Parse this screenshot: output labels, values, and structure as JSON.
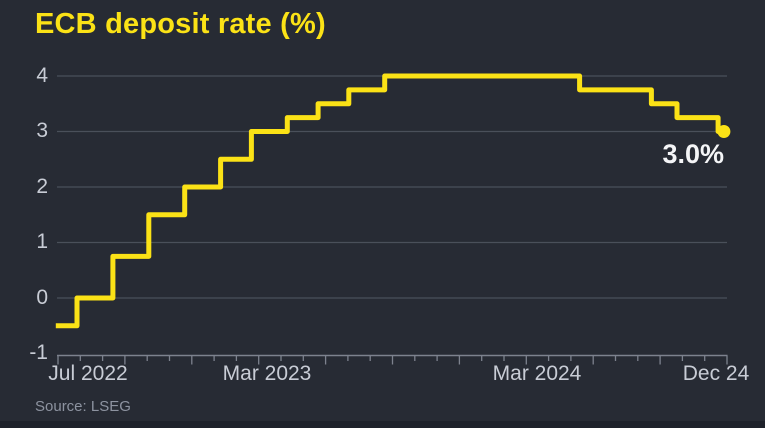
{
  "chart": {
    "title": "ECB deposit rate (%)",
    "source": "Source: LSEG",
    "end_label": "3.0%"
  },
  "colors": {
    "background": "#272b34",
    "line": "#fbe216",
    "title": "#fbe216",
    "grid": "#4a505a",
    "axis": "#7d828e",
    "tick_label": "#c8ccd5",
    "end_label": "#f4f5f7",
    "source": "#8d93a0",
    "bottom_strip": "#1e222b"
  },
  "chart_data": {
    "type": "line",
    "subtype": "step",
    "title": "ECB deposit rate (%)",
    "unit": "%",
    "grid": true,
    "legend": false,
    "ylim": [
      -1,
      4
    ],
    "x_domain": [
      "2022-06-28",
      "2025-01-01"
    ],
    "y_gridlines": [
      4,
      3,
      2,
      1,
      0
    ],
    "y_tick_labels": [
      "4",
      "3",
      "2",
      "1",
      "0",
      "-1"
    ],
    "x_tick_labels": [
      {
        "label": "Jul 2022",
        "date": "2022-07-01"
      },
      {
        "label": "Mar 2023",
        "date": "2023-03-01"
      },
      {
        "label": "Mar 2024",
        "date": "2024-03-01"
      },
      {
        "label": "Dec 24",
        "date": "2024-12-01"
      }
    ],
    "annotation": {
      "text": "3.0%",
      "value": 3.0,
      "date": "2024-12-18"
    },
    "series": [
      {
        "name": "ECB deposit rate",
        "points": [
          [
            "2022-06-28",
            -0.5
          ],
          [
            "2022-07-27",
            0.0
          ],
          [
            "2022-09-14",
            0.75
          ],
          [
            "2022-11-02",
            1.5
          ],
          [
            "2022-12-21",
            2.0
          ],
          [
            "2023-02-08",
            2.5
          ],
          [
            "2023-03-22",
            3.0
          ],
          [
            "2023-05-10",
            3.25
          ],
          [
            "2023-06-21",
            3.5
          ],
          [
            "2023-08-02",
            3.75
          ],
          [
            "2023-09-20",
            4.0
          ],
          [
            "2024-06-12",
            3.75
          ],
          [
            "2024-09-18",
            3.5
          ],
          [
            "2024-10-23",
            3.25
          ],
          [
            "2024-12-18",
            3.0
          ],
          [
            "2024-12-26",
            3.0
          ]
        ]
      }
    ]
  }
}
